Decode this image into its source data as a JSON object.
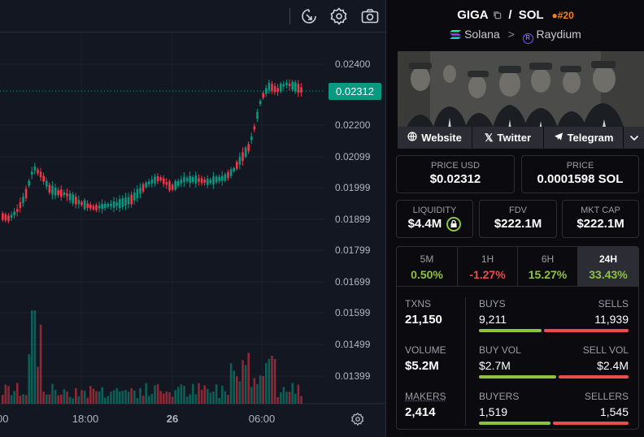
{
  "chart": {
    "price_ticks": [
      "0.02400",
      "0.02200",
      "0.02099",
      "0.01999",
      "0.01899",
      "0.01799",
      "0.01699",
      "0.01599",
      "0.01499",
      "0.01399"
    ],
    "time_ticks": [
      "00",
      "18:00",
      "26",
      "06:00"
    ],
    "last_price": "0.02312",
    "colors": {
      "up": "#089981",
      "down": "#f23645"
    }
  },
  "pair": {
    "base": "GIGA",
    "quote": "SOL",
    "separator": "/",
    "rank": "#20",
    "chain": "Solana",
    "dex": "Raydium"
  },
  "links": [
    "Website",
    "Twitter",
    "Telegram"
  ],
  "metrics": {
    "price_usd": {
      "label": "PRICE USD",
      "value": "$0.02312"
    },
    "price": {
      "label": "PRICE",
      "value": "0.0001598 SOL"
    },
    "liquidity": {
      "label": "LIQUIDITY",
      "value": "$4.4M"
    },
    "fdv": {
      "label": "FDV",
      "value": "$222.1M"
    },
    "mkt_cap": {
      "label": "MKT CAP",
      "value": "$222.1M"
    }
  },
  "timeframes": [
    {
      "label": "5M",
      "value": "0.50%",
      "dir": "pos"
    },
    {
      "label": "1H",
      "value": "-1.27%",
      "dir": "neg"
    },
    {
      "label": "6H",
      "value": "15.27%",
      "dir": "pos"
    },
    {
      "label": "24H",
      "value": "33.43%",
      "dir": "pos"
    }
  ],
  "stats": {
    "txns": {
      "label": "TXNS",
      "value": "21,150"
    },
    "volume": {
      "label": "VOLUME",
      "value": "$5.2M"
    },
    "makers": {
      "label": "MAKERS",
      "value": "2,414"
    },
    "buys": {
      "label": "BUYS",
      "value": "9,211",
      "share": 0.435
    },
    "sells": {
      "label": "SELLS",
      "value": "11,939"
    },
    "buy_vol": {
      "label": "BUY VOL",
      "value": "$2.7M",
      "share": 0.53
    },
    "sell_vol": {
      "label": "SELL VOL",
      "value": "$2.4M"
    },
    "buyers": {
      "label": "BUYERS",
      "value": "1,519",
      "share": 0.496
    },
    "sellers": {
      "label": "SELLERS",
      "value": "1,545"
    }
  }
}
